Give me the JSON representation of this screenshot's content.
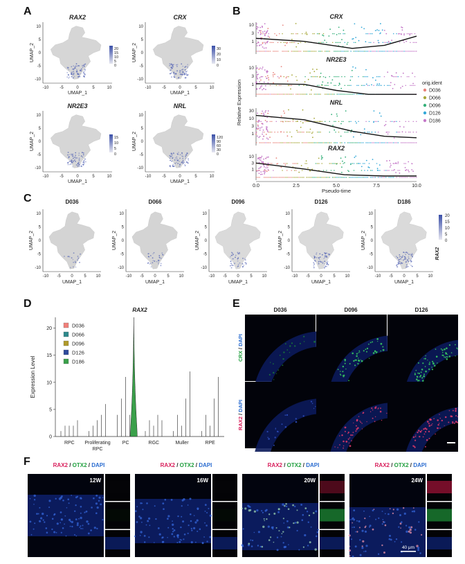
{
  "panels": {
    "A": "A",
    "B": "B",
    "C": "C",
    "D": "D",
    "E": "E",
    "F": "F"
  },
  "panel_a": {
    "axis_x": "UMAP_1",
    "axis_y": "UMAP_2",
    "x_ticks": [
      "-10",
      "-5",
      "0",
      "5",
      "10"
    ],
    "y_ticks": [
      "10",
      "5",
      "0",
      "-5",
      "-10"
    ],
    "plots": [
      {
        "gene": "RAX2",
        "scale": [
          "20",
          "15",
          "10",
          "5",
          "0"
        ]
      },
      {
        "gene": "CRX",
        "scale": [
          "30",
          "20",
          "10",
          "0"
        ]
      },
      {
        "gene": "NR2E3",
        "scale": [
          "15",
          "10",
          "5",
          "0"
        ]
      },
      {
        "gene": "NRL",
        "scale": [
          "120",
          "90",
          "60",
          "30",
          "0"
        ]
      }
    ]
  },
  "panel_b": {
    "ylabel": "Relative Expression",
    "xlabel": "Pseudo-time",
    "x_ticks": [
      "0.0",
      "2.5",
      "5.0",
      "7.5",
      "10.0"
    ],
    "legend_title": "orig.ident",
    "legend": [
      {
        "label": "D036",
        "color": "#e8827a"
      },
      {
        "label": "D066",
        "color": "#a8a83a"
      },
      {
        "label": "D096",
        "color": "#35b07a"
      },
      {
        "label": "D126",
        "color": "#33a8d8"
      },
      {
        "label": "D186",
        "color": "#c478c8"
      }
    ],
    "rows": [
      {
        "gene": "CRX",
        "ticks": [
          "10",
          "3",
          "1"
        ]
      },
      {
        "gene": "NR2E3",
        "ticks": [
          "10",
          "3",
          "1"
        ]
      },
      {
        "gene": "NRL",
        "ticks": [
          "30",
          "10",
          "3",
          "1"
        ]
      },
      {
        "gene": "RAX2",
        "ticks": [
          "10",
          "3",
          "1"
        ]
      }
    ]
  },
  "panel_c": {
    "axis_x": "UMAP_1",
    "axis_y": "UMAP_2",
    "x_ticks": [
      "-10",
      "-5",
      "0",
      "5",
      "10"
    ],
    "y_ticks": [
      "10",
      "5",
      "0",
      "-5",
      "-10"
    ],
    "samples": [
      "D036",
      "D066",
      "D096",
      "D126",
      "D186"
    ],
    "gene": "RAX2",
    "scale": [
      "20",
      "15",
      "10",
      "5",
      "0"
    ]
  },
  "chart_data": {
    "type": "violin",
    "title": "RAX2",
    "ylabel": "Expression Level",
    "ylim": [
      0,
      22
    ],
    "y_ticks": [
      "0",
      "5",
      "10",
      "15",
      "20"
    ],
    "categories": [
      "RPC",
      "Proliferating RPC",
      "PC",
      "RGC",
      "Muller",
      "RPE"
    ],
    "category_lines": [
      [
        "RPC"
      ],
      [
        "Proliferating",
        "RPC"
      ],
      [
        "PC"
      ],
      [
        "RGC"
      ],
      [
        "Muller"
      ],
      [
        "RPE"
      ]
    ],
    "series": [
      {
        "name": "D036",
        "color": "#f0807a",
        "max": [
          1,
          1,
          4,
          1,
          1,
          1
        ]
      },
      {
        "name": "D066",
        "color": "#2e8a8c",
        "max": [
          2,
          2,
          7,
          3,
          4,
          4
        ]
      },
      {
        "name": "D096",
        "color": "#b09a2a",
        "max": [
          2,
          3,
          11,
          2,
          2,
          2
        ]
      },
      {
        "name": "D126",
        "color": "#2e4a9c",
        "max": [
          2,
          4,
          4,
          4,
          7,
          7
        ]
      },
      {
        "name": "D186",
        "color": "#3aa04a",
        "max": [
          3,
          6,
          22,
          3,
          12,
          11
        ]
      }
    ]
  },
  "panel_e": {
    "columns": [
      "D036",
      "D096",
      "D126"
    ],
    "row1": {
      "stain": "CRX",
      "sep": " / ",
      "dapi": "DAPI"
    },
    "row2": {
      "stain": "RAX2",
      "sep": " / ",
      "dapi": "DAPI"
    }
  },
  "panel_f": {
    "label": {
      "rax2": "RAX2",
      "sep1": " / ",
      "otx2": "OTX2",
      "sep2": " / ",
      "dapi": "DAPI"
    },
    "timepoints": [
      "12W",
      "16W",
      "20W",
      "24W"
    ],
    "scale_bar": "40 μm"
  },
  "colors": {
    "rax2": "#d81e5b",
    "crx": "#22a040",
    "otx2": "#22a040",
    "dapi": "#2a6cd0",
    "umap_gray": "#d2d2d2",
    "umap_hi": "#5060b0"
  }
}
